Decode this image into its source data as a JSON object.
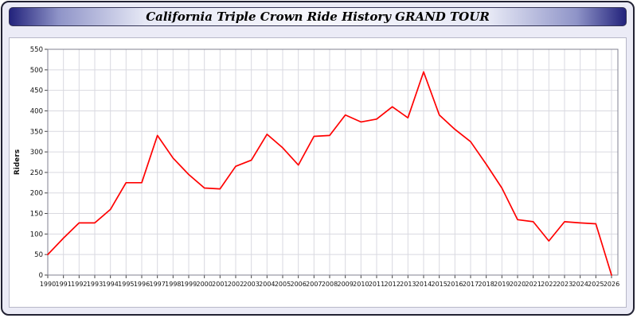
{
  "title": "California Triple Crown Ride History GRAND TOUR",
  "chart_data": {
    "type": "line",
    "title": "California Triple Crown Ride History GRAND TOUR",
    "xlabel": "",
    "ylabel": "Riders",
    "ylim": [
      0,
      550
    ],
    "ytick_step": 50,
    "grid": true,
    "legend": "none",
    "line_color": "#ff0000",
    "grid_color": "#d9d9e0",
    "x": [
      1990,
      1991,
      1992,
      1993,
      1994,
      1995,
      1996,
      1997,
      1998,
      1999,
      2000,
      2001,
      2002,
      2003,
      2004,
      2005,
      2006,
      2007,
      2008,
      2009,
      2010,
      2011,
      2012,
      2013,
      2014,
      2015,
      2016,
      2017,
      2018,
      2019,
      2020,
      2021,
      2022,
      2023,
      2024,
      2025,
      2026
    ],
    "series": [
      {
        "name": "Riders",
        "values": [
          50,
          90,
          127,
          127,
          160,
          225,
          225,
          340,
          285,
          245,
          212,
          210,
          265,
          280,
          343,
          310,
          268,
          338,
          340,
          390,
          373,
          380,
          410,
          383,
          495,
          390,
          355,
          325,
          270,
          212,
          135,
          130,
          83,
          130,
          127,
          125,
          0
        ]
      }
    ]
  }
}
